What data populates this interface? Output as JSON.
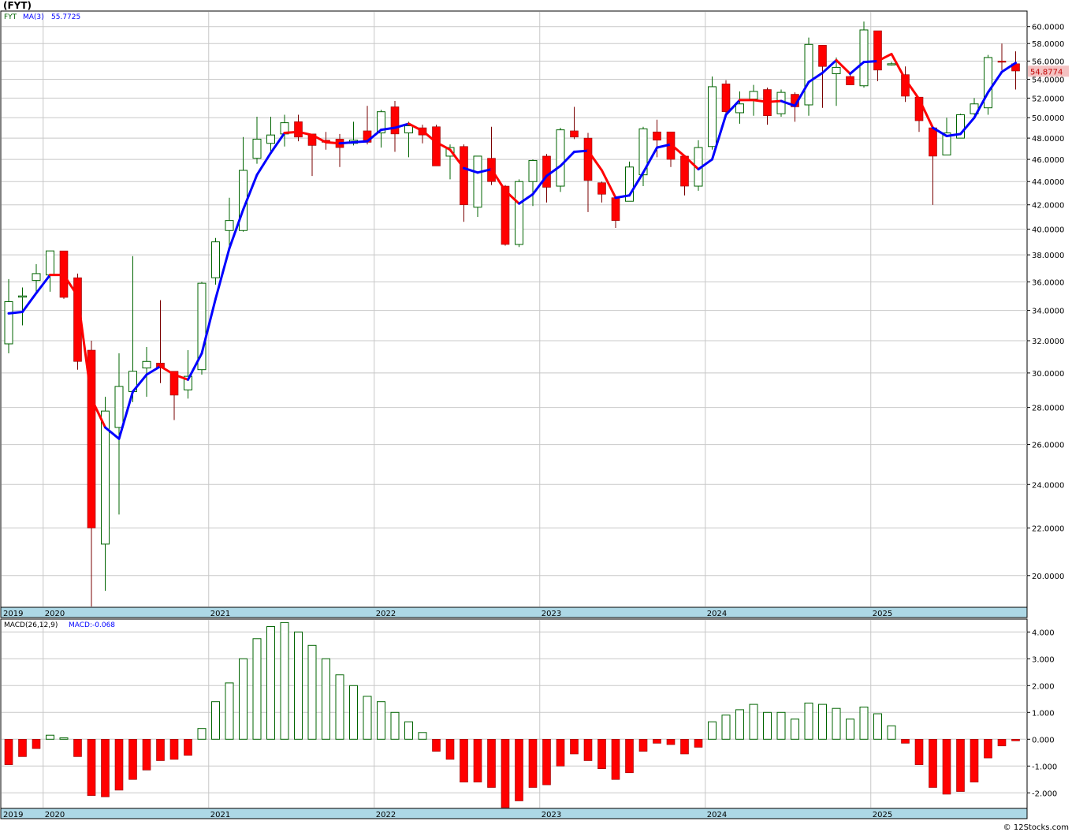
{
  "title": "(FYT)",
  "watermark": "© 12Stocks.com",
  "price_panel": {
    "ticker_label": "FYT",
    "ma_label": "MA(3)",
    "ma_value": "55.7725",
    "last_price": "54.8774"
  },
  "macd_panel": {
    "label": "MACD(26,12,9)",
    "value_label": "MACD:-0.068"
  },
  "year_labels": [
    "2019",
    "2020",
    "2021",
    "2022",
    "2023",
    "2024",
    "2025"
  ],
  "colors": {
    "up_candle_stroke": "#006400",
    "down_candle_fill": "#ff0000",
    "ma_up": "#0000ff",
    "ma_down": "#ff0000",
    "axis_band": "#add8e6",
    "grid": "#c8c8c8",
    "last_price_bg": "#f4c2c2"
  },
  "chart_data": [
    {
      "type": "candlestick",
      "title": "",
      "y_axis_ticks": [
        "20.0000",
        "22.0000",
        "24.0000",
        "26.0000",
        "28.0000",
        "30.0000",
        "32.0000",
        "34.0000",
        "36.0000",
        "38.0000",
        "40.0000",
        "42.0000",
        "44.0000",
        "46.0000",
        "48.0000",
        "50.0000",
        "52.0000",
        "54.0000",
        "56.0000",
        "58.0000",
        "60.0000"
      ],
      "y_scale": "log",
      "ylim": [
        18.8,
        61.8
      ],
      "start": "2019-10",
      "candles": [
        {
          "o": 31.8,
          "h": 36.2,
          "l": 31.2,
          "c": 34.6
        },
        {
          "o": 35.0,
          "h": 35.6,
          "l": 33.0,
          "c": 35.0
        },
        {
          "o": 36.1,
          "h": 37.3,
          "l": 35.2,
          "c": 36.6
        },
        {
          "o": 36.5,
          "h": 38.3,
          "l": 35.3,
          "c": 38.3
        },
        {
          "o": 38.3,
          "h": 38.3,
          "l": 34.8,
          "c": 34.9
        },
        {
          "o": 36.3,
          "h": 36.6,
          "l": 30.2,
          "c": 30.7
        },
        {
          "o": 31.4,
          "h": 32.0,
          "l": 18.8,
          "c": 22.0
        },
        {
          "o": 21.3,
          "h": 28.6,
          "l": 19.4,
          "c": 27.8
        },
        {
          "o": 26.9,
          "h": 31.2,
          "l": 22.6,
          "c": 29.2
        },
        {
          "o": 28.9,
          "h": 37.9,
          "l": 28.3,
          "c": 30.1
        },
        {
          "o": 30.3,
          "h": 31.6,
          "l": 28.6,
          "c": 30.7
        },
        {
          "o": 30.6,
          "h": 34.7,
          "l": 29.4,
          "c": 30.3
        },
        {
          "o": 30.1,
          "h": 30.1,
          "l": 27.3,
          "c": 28.7
        },
        {
          "o": 29.0,
          "h": 31.4,
          "l": 28.5,
          "c": 29.8
        },
        {
          "o": 30.2,
          "h": 36.0,
          "l": 29.9,
          "c": 35.9
        },
        {
          "o": 36.3,
          "h": 39.3,
          "l": 35.8,
          "c": 39.0
        },
        {
          "o": 39.9,
          "h": 42.6,
          "l": 38.6,
          "c": 40.7
        },
        {
          "o": 39.9,
          "h": 48.1,
          "l": 39.8,
          "c": 45.0
        },
        {
          "o": 46.1,
          "h": 50.1,
          "l": 45.6,
          "c": 47.9
        },
        {
          "o": 47.5,
          "h": 50.1,
          "l": 46.6,
          "c": 48.3
        },
        {
          "o": 48.4,
          "h": 50.3,
          "l": 47.2,
          "c": 49.5
        },
        {
          "o": 49.6,
          "h": 50.3,
          "l": 47.7,
          "c": 48.1
        },
        {
          "o": 48.4,
          "h": 48.4,
          "l": 44.5,
          "c": 47.3
        },
        {
          "o": 47.8,
          "h": 48.6,
          "l": 46.9,
          "c": 47.6
        },
        {
          "o": 47.9,
          "h": 48.4,
          "l": 45.3,
          "c": 47.1
        },
        {
          "o": 47.5,
          "h": 49.6,
          "l": 47.3,
          "c": 47.8
        },
        {
          "o": 48.7,
          "h": 51.2,
          "l": 47.4,
          "c": 47.6
        },
        {
          "o": 48.5,
          "h": 50.8,
          "l": 47.1,
          "c": 50.6
        },
        {
          "o": 51.1,
          "h": 51.7,
          "l": 46.7,
          "c": 48.4
        },
        {
          "o": 48.5,
          "h": 49.6,
          "l": 46.2,
          "c": 49.2
        },
        {
          "o": 49.0,
          "h": 49.3,
          "l": 47.5,
          "c": 48.3
        },
        {
          "o": 49.1,
          "h": 49.3,
          "l": 45.4,
          "c": 45.4
        },
        {
          "o": 46.3,
          "h": 47.4,
          "l": 44.2,
          "c": 47.1
        },
        {
          "o": 47.2,
          "h": 47.4,
          "l": 40.6,
          "c": 42.0
        },
        {
          "o": 41.8,
          "h": 46.3,
          "l": 41.0,
          "c": 46.3
        },
        {
          "o": 46.1,
          "h": 49.1,
          "l": 43.7,
          "c": 44.0
        },
        {
          "o": 43.6,
          "h": 43.7,
          "l": 38.7,
          "c": 38.8
        },
        {
          "o": 38.8,
          "h": 44.2,
          "l": 38.6,
          "c": 44.0
        },
        {
          "o": 44.0,
          "h": 46.0,
          "l": 41.9,
          "c": 45.9
        },
        {
          "o": 46.3,
          "h": 46.5,
          "l": 42.2,
          "c": 43.5
        },
        {
          "o": 43.6,
          "h": 49.0,
          "l": 43.1,
          "c": 48.8
        },
        {
          "o": 48.7,
          "h": 51.1,
          "l": 47.9,
          "c": 48.1
        },
        {
          "o": 48.0,
          "h": 48.5,
          "l": 41.4,
          "c": 44.1
        },
        {
          "o": 43.9,
          "h": 44.0,
          "l": 42.2,
          "c": 42.9
        },
        {
          "o": 42.6,
          "h": 42.6,
          "l": 40.1,
          "c": 40.7
        },
        {
          "o": 42.3,
          "h": 45.8,
          "l": 42.3,
          "c": 45.3
        },
        {
          "o": 44.6,
          "h": 49.1,
          "l": 43.6,
          "c": 48.9
        },
        {
          "o": 48.6,
          "h": 49.8,
          "l": 46.2,
          "c": 47.8
        },
        {
          "o": 48.6,
          "h": 48.6,
          "l": 45.3,
          "c": 46.0
        },
        {
          "o": 46.3,
          "h": 46.3,
          "l": 42.8,
          "c": 43.6
        },
        {
          "o": 43.6,
          "h": 47.8,
          "l": 43.2,
          "c": 47.1
        },
        {
          "o": 47.2,
          "h": 54.3,
          "l": 46.9,
          "c": 53.2
        },
        {
          "o": 53.5,
          "h": 53.9,
          "l": 50.3,
          "c": 50.6
        },
        {
          "o": 50.5,
          "h": 52.7,
          "l": 49.4,
          "c": 51.4
        },
        {
          "o": 51.9,
          "h": 53.4,
          "l": 50.2,
          "c": 52.7
        },
        {
          "o": 52.9,
          "h": 53.1,
          "l": 49.3,
          "c": 50.2
        },
        {
          "o": 50.4,
          "h": 52.9,
          "l": 50.1,
          "c": 52.6
        },
        {
          "o": 52.4,
          "h": 52.6,
          "l": 49.6,
          "c": 51.1
        },
        {
          "o": 51.3,
          "h": 58.7,
          "l": 50.2,
          "c": 57.9
        },
        {
          "o": 57.8,
          "h": 57.8,
          "l": 51.0,
          "c": 55.4
        },
        {
          "o": 54.6,
          "h": 56.4,
          "l": 51.2,
          "c": 55.3
        },
        {
          "o": 54.3,
          "h": 54.6,
          "l": 53.4,
          "c": 53.4
        },
        {
          "o": 53.3,
          "h": 60.6,
          "l": 53.1,
          "c": 59.6
        },
        {
          "o": 59.5,
          "h": 59.5,
          "l": 53.8,
          "c": 55.0
        },
        {
          "o": 55.7,
          "h": 55.9,
          "l": 55.5,
          "c": 55.7
        },
        {
          "o": 54.5,
          "h": 55.4,
          "l": 51.6,
          "c": 52.2
        },
        {
          "o": 52.1,
          "h": 52.1,
          "l": 48.6,
          "c": 49.7
        },
        {
          "o": 49.0,
          "h": 49.2,
          "l": 42.0,
          "c": 46.3
        },
        {
          "o": 46.4,
          "h": 50.0,
          "l": 46.4,
          "c": 48.5
        },
        {
          "o": 48.0,
          "h": 50.4,
          "l": 48.0,
          "c": 50.3
        },
        {
          "o": 50.4,
          "h": 52.0,
          "l": 50.3,
          "c": 51.4
        },
        {
          "o": 51.0,
          "h": 56.7,
          "l": 50.3,
          "c": 56.4
        },
        {
          "o": 56.0,
          "h": 58.0,
          "l": 55.0,
          "c": 55.9
        },
        {
          "o": 55.7,
          "h": 57.1,
          "l": 52.9,
          "c": 54.9
        }
      ],
      "ma": [
        33.8,
        33.9,
        35.2,
        36.5,
        36.5,
        35.0,
        28.5,
        26.9,
        26.3,
        28.9,
        29.9,
        30.4,
        29.9,
        29.6,
        31.2,
        34.8,
        38.5,
        41.6,
        44.6,
        46.6,
        48.5,
        48.6,
        48.3,
        47.6,
        47.5,
        47.6,
        47.7,
        48.8,
        49.0,
        49.4,
        48.7,
        47.6,
        46.9,
        45.2,
        44.8,
        45.1,
        43.2,
        42.1,
        42.9,
        44.5,
        45.4,
        46.7,
        46.8,
        45.0,
        42.6,
        42.8,
        44.8,
        47.1,
        47.4,
        46.3,
        45.1,
        46.0,
        50.3,
        51.8,
        51.8,
        51.6,
        51.7,
        51.2,
        53.7,
        54.7,
        56.1,
        54.6,
        55.9,
        56.0,
        56.8,
        54.0,
        51.9,
        49.0,
        48.2,
        48.4,
        50.0,
        52.6,
        54.8,
        55.8
      ],
      "ma_color_flags": [
        "up",
        "up",
        "up",
        "up",
        "down",
        "down",
        "down",
        "down",
        "up",
        "up",
        "up",
        "up",
        "down",
        "down",
        "up",
        "up",
        "up",
        "up",
        "up",
        "up",
        "up",
        "down",
        "down",
        "down",
        "down",
        "up",
        "up",
        "up",
        "up",
        "up",
        "down",
        "down",
        "down",
        "down",
        "up",
        "up",
        "down",
        "down",
        "up",
        "up",
        "up",
        "up",
        "up",
        "down",
        "down",
        "up",
        "up",
        "up",
        "up",
        "down",
        "down",
        "up",
        "up",
        "up",
        "down",
        "down",
        "down",
        "up",
        "up",
        "up",
        "up",
        "down",
        "up",
        "up",
        "down",
        "down",
        "down",
        "down",
        "up",
        "up",
        "up",
        "up",
        "up",
        "up"
      ]
    },
    {
      "type": "bar",
      "title": "",
      "y_axis_ticks": [
        "-2.000",
        "-1.000",
        "0.000",
        "1.000",
        "2.000",
        "3.000",
        "4.000"
      ],
      "ylim": [
        -2.55,
        4.45
      ],
      "start": "2019-10",
      "values": [
        -0.95,
        -0.65,
        -0.35,
        0.15,
        0.05,
        -0.65,
        -2.1,
        -2.15,
        -1.9,
        -1.5,
        -1.15,
        -0.8,
        -0.75,
        -0.6,
        0.4,
        1.4,
        2.1,
        3.0,
        3.75,
        4.2,
        4.35,
        4.0,
        3.5,
        3.0,
        2.4,
        2.0,
        1.6,
        1.4,
        1.0,
        0.65,
        0.25,
        -0.45,
        -0.75,
        -1.6,
        -1.6,
        -1.8,
        -2.55,
        -2.3,
        -1.8,
        -1.7,
        -1.0,
        -0.55,
        -0.8,
        -1.1,
        -1.5,
        -1.25,
        -0.45,
        -0.15,
        -0.2,
        -0.55,
        -0.3,
        0.65,
        0.9,
        1.1,
        1.3,
        1.0,
        1.0,
        0.75,
        1.35,
        1.3,
        1.15,
        0.75,
        1.2,
        0.95,
        0.5,
        -0.15,
        -0.95,
        -1.8,
        -2.05,
        -1.95,
        -1.6,
        -0.7,
        -0.25,
        -0.06
      ]
    }
  ]
}
